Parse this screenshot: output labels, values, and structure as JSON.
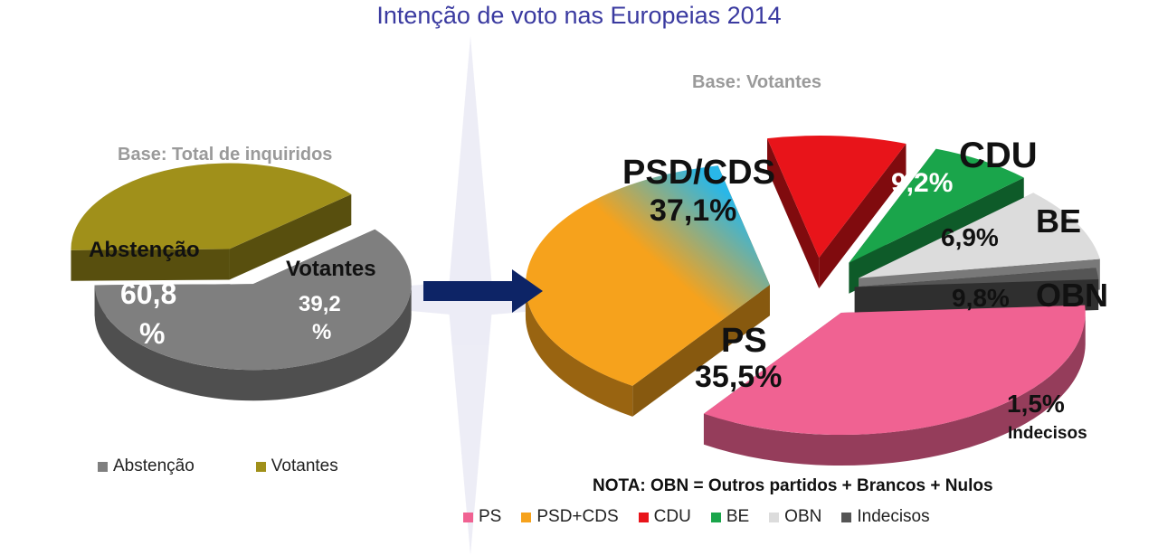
{
  "title": "Intenção de voto nas Europeias 2014",
  "chart_data": [
    {
      "type": "pie",
      "subtitle": "Base: Total de inquiridos",
      "labels": [
        "Abstenção",
        "Votantes"
      ],
      "values": [
        60.8,
        39.2
      ],
      "value_labels": [
        "60,8 %",
        "39,2 %"
      ],
      "colors": [
        "#7f7f7f",
        "#a0901a"
      ],
      "legend": "bottom"
    },
    {
      "type": "pie",
      "subtitle": "Base: Votantes",
      "labels": [
        "PS",
        "PSD+CDS",
        "CDU",
        "BE",
        "OBN",
        "Indecisos"
      ],
      "slice_names": [
        "PS",
        "PSD/CDS",
        "CDU",
        "BE",
        "OBN",
        "Indecisos"
      ],
      "values": [
        35.5,
        37.1,
        9.2,
        6.9,
        9.8,
        1.5
      ],
      "value_labels": [
        "35,5%",
        "37,1%",
        "9,2%",
        "6,9%",
        "9,8%",
        "1,5%"
      ],
      "colors": [
        "#f06292",
        "#f6a21c",
        "#e8141a",
        "#1aa54b",
        "#dcdcdc",
        "#555555"
      ],
      "legend": "bottom"
    }
  ],
  "labels": {
    "abst_name": "Abstenção",
    "abst_val1": "60,8",
    "abst_val2": "%",
    "vot_name": "Votantes",
    "vot_val1": "39,2",
    "vot_val2": "%",
    "psd_name": "PSD/CDS",
    "psd_val": "37,1%",
    "ps_name": "PS",
    "ps_val": "35,5%",
    "cdu_name": "CDU",
    "cdu_val": "9,2%",
    "be_name": "BE",
    "be_val": "6,9%",
    "obn_name": "OBN",
    "obn_val": "9,8%",
    "ind_val": "1,5%",
    "ind_name": "Indecisos"
  },
  "note": "NOTA: OBN = Outros partidos + Brancos + Nulos",
  "colors": {
    "title": "#3a3aa0",
    "arrow": "#0d2466",
    "base_text": "#9a9a9a"
  }
}
